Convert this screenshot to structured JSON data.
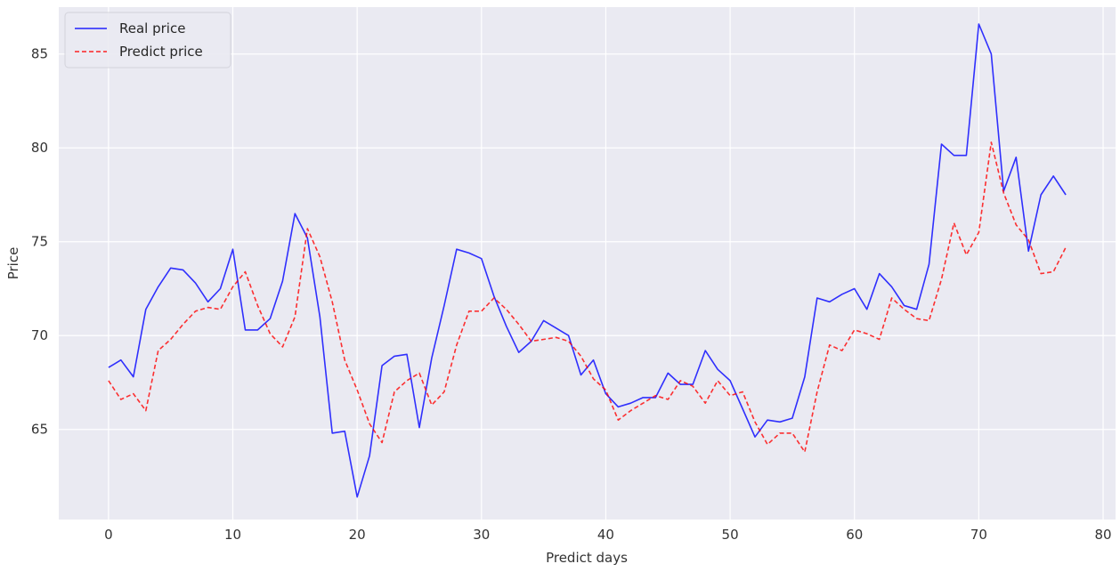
{
  "chart_data": {
    "type": "line",
    "title": "",
    "xlabel": "Predict days",
    "ylabel": "Price",
    "xlim": [
      -4,
      81
    ],
    "ylim": [
      60.2,
      87.5
    ],
    "xticks": [
      0,
      10,
      20,
      30,
      40,
      50,
      60,
      70,
      80
    ],
    "yticks": [
      65,
      70,
      75,
      80,
      85
    ],
    "grid": true,
    "legend_position": "top-left",
    "background_color": "#eaeaf2",
    "grid_color": "#ffffff",
    "series": [
      {
        "name": "Real price",
        "color": "#0000ff",
        "style": "solid",
        "values": [
          68.3,
          68.7,
          67.8,
          71.4,
          72.6,
          73.6,
          73.5,
          72.8,
          71.8,
          72.5,
          74.6,
          70.3,
          70.3,
          70.9,
          72.9,
          76.5,
          75.2,
          71.0,
          64.8,
          64.9,
          61.4,
          63.6,
          68.4,
          68.9,
          69.0,
          65.1,
          68.8,
          71.6,
          74.6,
          74.4,
          74.1,
          72.1,
          70.5,
          69.1,
          69.7,
          70.8,
          70.4,
          70.0,
          67.9,
          68.7,
          66.9,
          66.2,
          66.4,
          66.7,
          66.7,
          68.0,
          67.4,
          67.4,
          69.2,
          68.2,
          67.6,
          66.1,
          64.6,
          65.5,
          65.4,
          65.6,
          67.8,
          72.0,
          71.8,
          72.2,
          72.5,
          71.4,
          73.3,
          72.6,
          71.6,
          71.4,
          73.8,
          80.2,
          79.6,
          79.6,
          86.6,
          85.0,
          77.7,
          79.5,
          74.5,
          77.5,
          78.5,
          77.5
        ]
      },
      {
        "name": "Predict price",
        "color": "#ff0000",
        "style": "dashed",
        "values": [
          67.6,
          66.6,
          66.9,
          66.0,
          69.2,
          69.8,
          70.6,
          71.3,
          71.5,
          71.4,
          72.6,
          73.4,
          71.6,
          70.1,
          69.4,
          71.0,
          75.7,
          74.2,
          71.8,
          68.7,
          67.1,
          65.3,
          64.3,
          67.0,
          67.6,
          68.0,
          66.3,
          67.0,
          69.5,
          71.3,
          71.3,
          72.0,
          71.4,
          70.6,
          69.7,
          69.8,
          69.9,
          69.7,
          68.9,
          67.7,
          67.1,
          65.5,
          66.0,
          66.4,
          66.8,
          66.6,
          67.6,
          67.3,
          66.4,
          67.6,
          66.8,
          67.0,
          65.4,
          64.2,
          64.8,
          64.8,
          63.8,
          67.0,
          69.5,
          69.2,
          70.3,
          70.1,
          69.8,
          72.0,
          71.4,
          70.9,
          70.8,
          73.0,
          76.0,
          74.3,
          75.5,
          80.3,
          77.6,
          75.9,
          75.1,
          73.3,
          73.4,
          74.7
        ]
      }
    ]
  }
}
